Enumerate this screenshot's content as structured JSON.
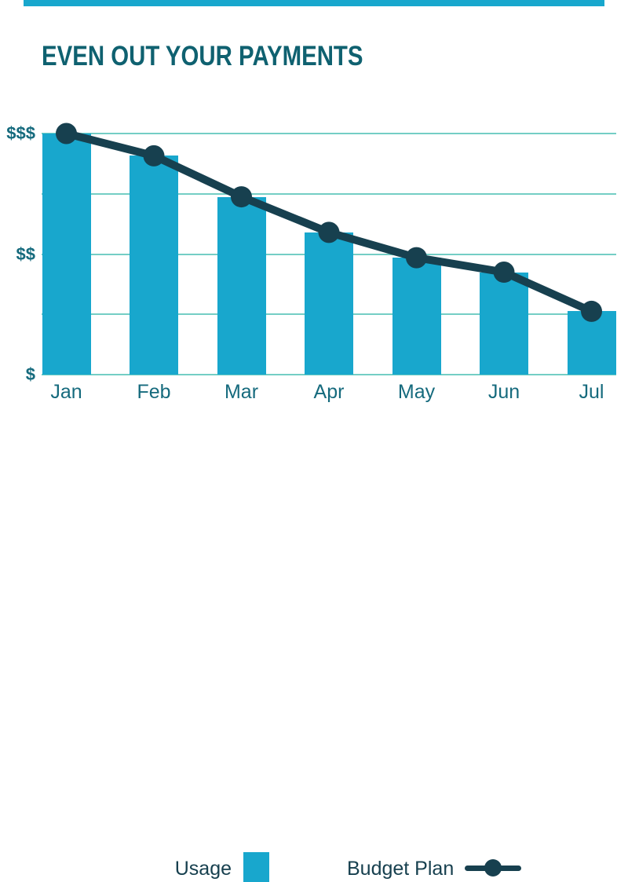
{
  "page": {
    "background": "#ffffff",
    "top_bar_color": "#18a7cd",
    "title_color": "#0f6170",
    "axis_label_color": "#156a7d",
    "legend_text_color": "#17404f"
  },
  "chart_data": {
    "type": "bar+line",
    "title": "EVEN OUT YOUR PAYMENTS",
    "categories": [
      "Jan",
      "Feb",
      "Mar",
      "Apr",
      "May",
      "Jun",
      "Jul"
    ],
    "series": [
      {
        "name": "Usage",
        "type": "bar",
        "color": "#18a7cd",
        "values": [
          4.0,
          3.63,
          2.95,
          2.36,
          1.94,
          1.7,
          1.05
        ]
      },
      {
        "name": "Budget Plan",
        "type": "line",
        "color": "#17404f",
        "values": [
          4.0,
          3.63,
          2.95,
          2.36,
          1.94,
          1.7,
          1.05
        ]
      }
    ],
    "y_ticks": [
      {
        "label": "$$$",
        "value": 4
      },
      {
        "label": "$$",
        "value": 2
      },
      {
        "label": "$",
        "value": 0
      }
    ],
    "y_gridlines": [
      0,
      1,
      2,
      3,
      4
    ],
    "ylim": [
      0,
      4
    ],
    "xlabel": "",
    "ylabel": "",
    "grid_color": "#74cec5",
    "grid": true,
    "legend_position": "bottom"
  },
  "legend": {
    "usage_label": "Usage",
    "budget_label": "Budget Plan"
  }
}
